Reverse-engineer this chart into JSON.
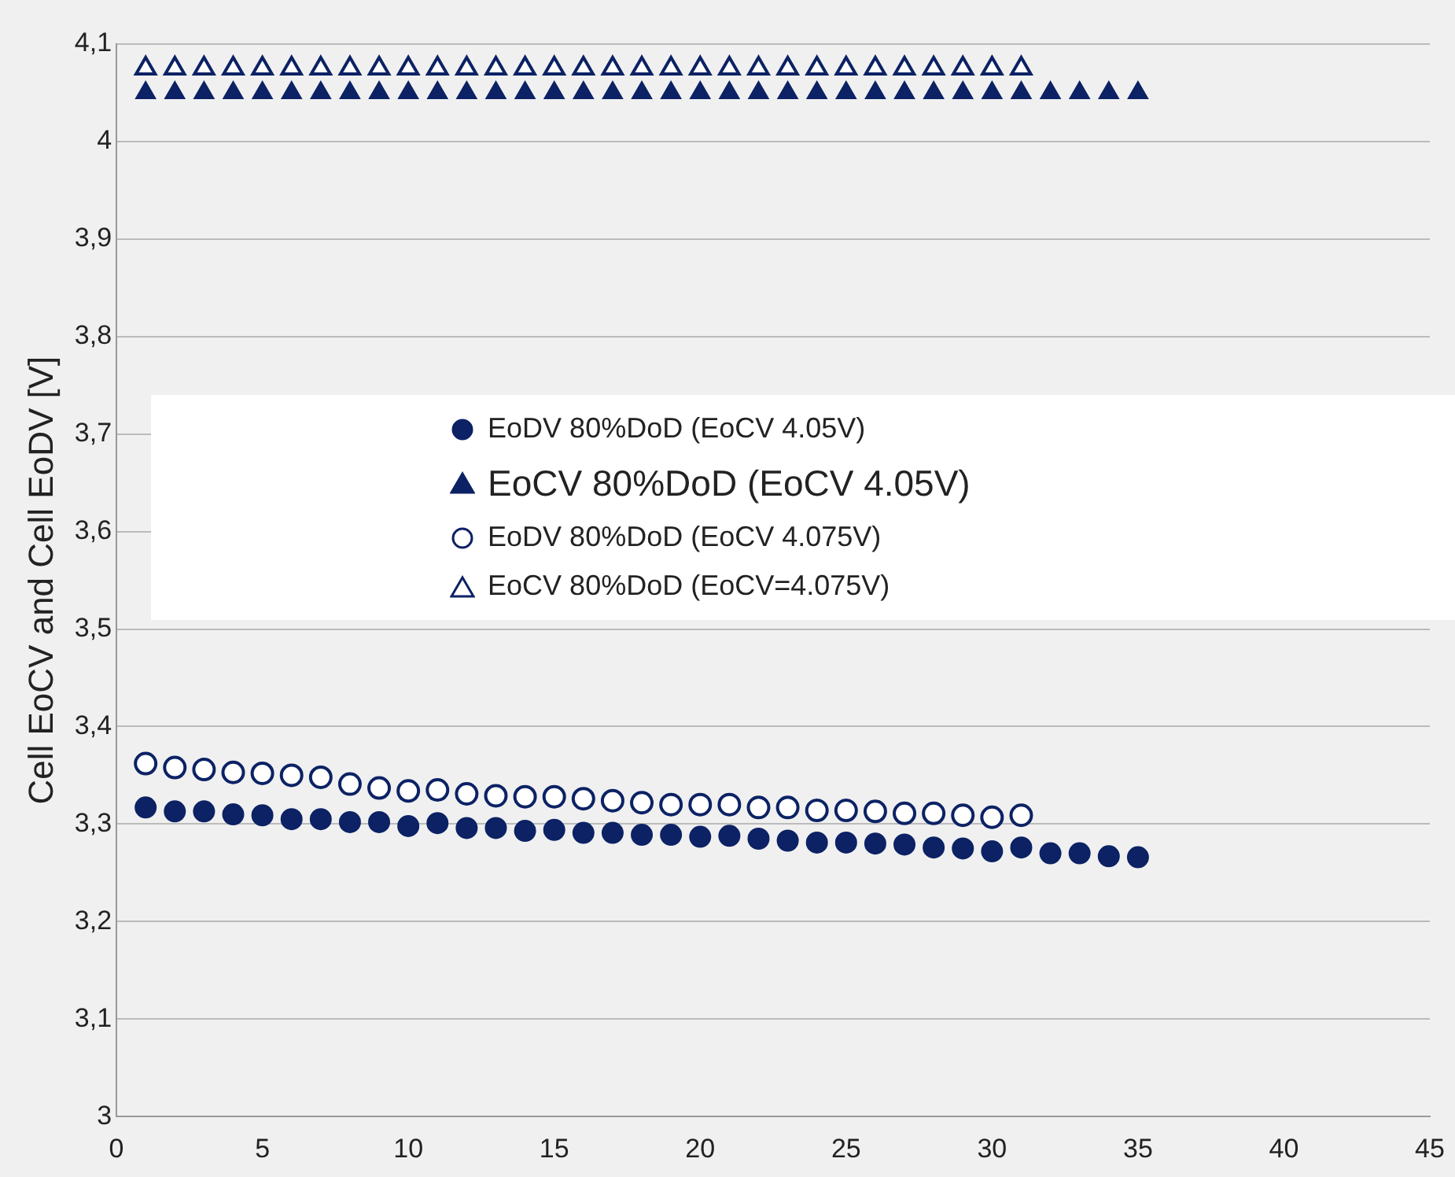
{
  "chart_data": {
    "type": "scatter",
    "ylabel": "Cell EoCV and Cell EoDV [V]",
    "xlim": [
      0,
      45
    ],
    "xticks": [
      0,
      5,
      10,
      15,
      20,
      25,
      30,
      35,
      40,
      45
    ],
    "ylim": [
      3,
      4.1
    ],
    "yticks": [
      3,
      {
        "value": 3.1,
        "label": "3,1"
      },
      {
        "value": 3.2,
        "label": "3,2"
      },
      {
        "value": 3.3,
        "label": "3,3"
      },
      {
        "value": 3.4,
        "label": "3,4"
      },
      {
        "value": 3.5,
        "label": "3,5"
      },
      {
        "value": 3.6,
        "label": "3,6"
      },
      {
        "value": 3.7,
        "label": "3,7"
      },
      {
        "value": 3.8,
        "label": "3,8"
      },
      {
        "value": 3.9,
        "label": "3,9"
      },
      4,
      {
        "value": 4.1,
        "label": "4,1"
      }
    ],
    "grid": "y",
    "legend": "center",
    "series": [
      {
        "name": "EoDV 80%DoD (EoCV 4.05V)",
        "color": "#0c2265",
        "marker": "circle",
        "x": [
          1,
          2,
          3,
          4,
          5,
          6,
          7,
          8,
          9,
          10,
          11,
          12,
          13,
          14,
          15,
          16,
          17,
          18,
          19,
          20,
          21,
          22,
          23,
          24,
          25,
          26,
          27,
          28,
          29,
          30,
          31,
          32,
          33,
          34,
          35
        ],
        "values": [
          3.317,
          3.313,
          3.313,
          3.31,
          3.309,
          3.305,
          3.305,
          3.302,
          3.302,
          3.298,
          3.301,
          3.296,
          3.296,
          3.293,
          3.294,
          3.291,
          3.291,
          3.289,
          3.289,
          3.287,
          3.288,
          3.285,
          3.283,
          3.281,
          3.281,
          3.28,
          3.279,
          3.276,
          3.275,
          3.272,
          3.276,
          3.27,
          3.27,
          3.267,
          3.266
        ]
      },
      {
        "name": "EoCV 80%DoD (EoCV 4.05V)",
        "color": "#0c2265",
        "marker": "triangle",
        "x": [
          1,
          2,
          3,
          4,
          5,
          6,
          7,
          8,
          9,
          10,
          11,
          12,
          13,
          14,
          15,
          16,
          17,
          18,
          19,
          20,
          21,
          22,
          23,
          24,
          25,
          26,
          27,
          28,
          29,
          30,
          31,
          32,
          33,
          34,
          35
        ],
        "values": [
          4.05,
          4.05,
          4.05,
          4.05,
          4.05,
          4.05,
          4.05,
          4.05,
          4.05,
          4.05,
          4.05,
          4.05,
          4.05,
          4.05,
          4.05,
          4.05,
          4.05,
          4.05,
          4.05,
          4.05,
          4.05,
          4.05,
          4.05,
          4.05,
          4.05,
          4.05,
          4.05,
          4.05,
          4.05,
          4.05,
          4.05,
          4.05,
          4.05,
          4.05,
          4.05
        ]
      },
      {
        "name": "EoDV 80%DoD (EoCV 4.075V)",
        "color": "#0c2265",
        "marker": "circle",
        "x": [
          1,
          2,
          3,
          4,
          5,
          6,
          7,
          8,
          9,
          10,
          11,
          12,
          13,
          14,
          15,
          16,
          17,
          18,
          19,
          20,
          21,
          22,
          23,
          24,
          25,
          26,
          27,
          28,
          29,
          30,
          31
        ],
        "values": [
          3.362,
          3.358,
          3.356,
          3.353,
          3.352,
          3.35,
          3.348,
          3.341,
          3.337,
          3.334,
          3.335,
          3.331,
          3.329,
          3.328,
          3.328,
          3.326,
          3.324,
          3.322,
          3.32,
          3.32,
          3.32,
          3.317,
          3.317,
          3.314,
          3.314,
          3.313,
          3.311,
          3.311,
          3.309,
          3.307,
          3.309
        ]
      },
      {
        "name": "EoCV 80%DoD (EoCV=4.075V)",
        "color": "#0c2265",
        "marker": "triangle",
        "x": [
          1,
          2,
          3,
          4,
          5,
          6,
          7,
          8,
          9,
          10,
          11,
          12,
          13,
          14,
          15,
          16,
          17,
          18,
          19,
          20,
          21,
          22,
          23,
          24,
          25,
          26,
          27,
          28,
          29,
          30,
          31
        ],
        "values": [
          4.075,
          4.075,
          4.075,
          4.075,
          4.075,
          4.075,
          4.075,
          4.075,
          4.075,
          4.075,
          4.075,
          4.075,
          4.075,
          4.075,
          4.075,
          4.075,
          4.075,
          4.075,
          4.075,
          4.075,
          4.075,
          4.075,
          4.075,
          4.075,
          4.075,
          4.075,
          4.075,
          4.075,
          4.075,
          4.075,
          4.075
        ]
      }
    ]
  }
}
